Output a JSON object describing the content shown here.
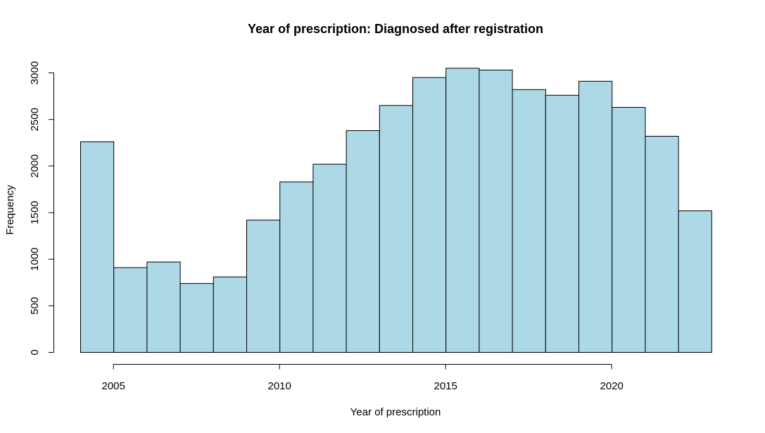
{
  "chart_data": {
    "type": "bar",
    "title": "Year of prescription: Diagnosed after registration",
    "xlabel": "Year of prescription",
    "ylabel": "Frequency",
    "bin_edges": [
      2004,
      2005,
      2006,
      2007,
      2008,
      2009,
      2010,
      2011,
      2012,
      2013,
      2014,
      2015,
      2016,
      2017,
      2018,
      2019,
      2020,
      2021,
      2022,
      2023
    ],
    "values": [
      2260,
      910,
      970,
      740,
      810,
      1420,
      1830,
      2020,
      2380,
      2650,
      2950,
      3050,
      3030,
      2820,
      2760,
      2910,
      2630,
      2320,
      1520
    ],
    "xlim": [
      2004,
      2023
    ],
    "ylim": [
      0,
      3000
    ],
    "x_ticks": [
      "2005",
      "2010",
      "2015",
      "2020"
    ],
    "y_ticks": [
      "0",
      "500",
      "1000",
      "1500",
      "2000",
      "2500",
      "3000"
    ],
    "bar_color": "#ADD8E6",
    "grid": false,
    "legend": "none"
  }
}
